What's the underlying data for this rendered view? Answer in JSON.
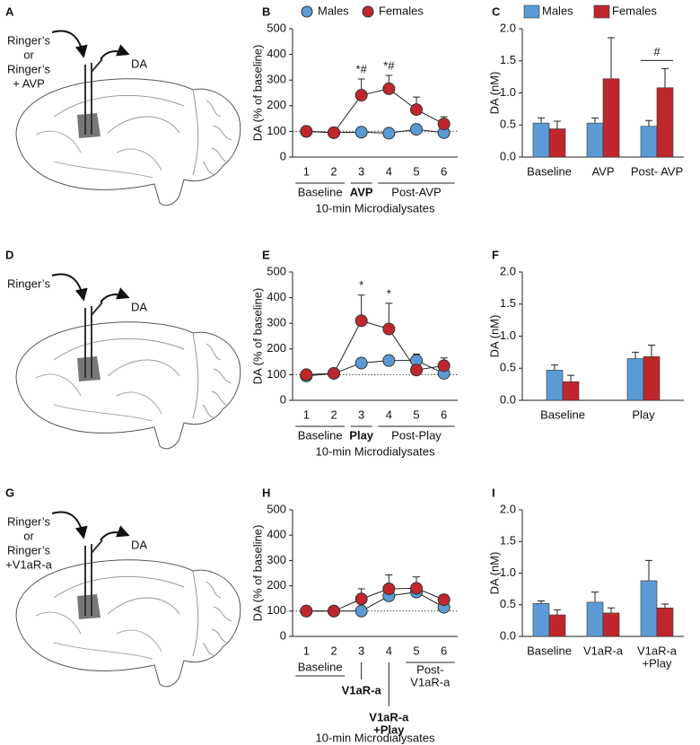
{
  "chart_data": [
    {
      "type": "line",
      "panel": "B",
      "ylabel": "DA (% of baseline)",
      "xlabel": "10-min Microdialysates",
      "categories": [
        "1",
        "2",
        "3",
        "4",
        "5",
        "6"
      ],
      "series": [
        {
          "name": "Males",
          "color": "#5b9bd5",
          "values": [
            100,
            95,
            97,
            93,
            108,
            95
          ],
          "errors": [
            8,
            8,
            8,
            8,
            10,
            8
          ]
        },
        {
          "name": "Females",
          "color": "#c0272d",
          "values": [
            100,
            95,
            241,
            266,
            185,
            129
          ],
          "errors": [
            8,
            8,
            63,
            52,
            49,
            28
          ],
          "annotations": [
            null,
            null,
            "*#",
            "*#",
            null,
            null
          ]
        }
      ],
      "x_groups": [
        {
          "label": "Baseline"
        },
        {
          "label": "AVP",
          "bold": true
        },
        {
          "label": "Post-AVP"
        }
      ],
      "reference_line": 100,
      "legend": "top",
      "ylim": [
        0,
        500
      ],
      "yticks": [
        0,
        100,
        200,
        300,
        400,
        500
      ]
    },
    {
      "type": "bar",
      "panel": "C",
      "ylabel": "DA (nM)",
      "categories": [
        "Baseline",
        "AVP",
        "Post- AVP"
      ],
      "series": [
        {
          "name": "Males",
          "color": "#5b9bd5",
          "values": [
            0.53,
            0.53,
            0.48
          ],
          "errors": [
            0.08,
            0.08,
            0.09
          ]
        },
        {
          "name": "Females",
          "color": "#c0272d",
          "values": [
            0.44,
            1.22,
            1.08
          ],
          "errors": [
            0.12,
            0.64,
            0.3
          ]
        }
      ],
      "annotations": [
        null,
        null,
        "#"
      ],
      "legend": "top",
      "ylim": [
        0,
        2
      ],
      "yticks": [
        {
          "value": 0,
          "label": "0.0"
        },
        {
          "value": 0.5,
          "label": "0.5"
        },
        {
          "value": 1,
          "label": "1.0"
        },
        {
          "value": 1.5,
          "label": "1.5"
        },
        {
          "value": 2,
          "label": "2.0"
        }
      ]
    },
    {
      "type": "line",
      "panel": "E",
      "ylabel": "DA (% of baseline)",
      "xlabel": "10-min Microdialysates",
      "categories": [
        "1",
        "2",
        "3",
        "4",
        "5",
        "6"
      ],
      "series": [
        {
          "color": "#5b9bd5",
          "values": [
            95,
            105,
            145,
            155,
            155,
            105
          ],
          "errors": [
            8,
            8,
            15,
            20,
            25,
            10
          ]
        },
        {
          "color": "#c0272d",
          "values": [
            100,
            105,
            310,
            278,
            118,
            135
          ],
          "errors": [
            10,
            8,
            100,
            100,
            15,
            30
          ],
          "annotations": [
            null,
            null,
            "*",
            "*",
            null,
            null
          ]
        }
      ],
      "x_groups": [
        {
          "label": "Baseline"
        },
        {
          "label": "Play",
          "bold": true
        },
        {
          "label": "Post-Play"
        }
      ],
      "reference_line": 100,
      "ylim": [
        0,
        500
      ],
      "yticks": [
        0,
        100,
        200,
        300,
        400,
        500
      ]
    },
    {
      "type": "bar",
      "panel": "F",
      "ylabel": "DA (nM)",
      "categories": [
        "Baseline",
        "Play"
      ],
      "series": [
        {
          "color": "#5b9bd5",
          "values": [
            0.47,
            0.65
          ],
          "errors": [
            0.08,
            0.1
          ]
        },
        {
          "color": "#c0272d",
          "values": [
            0.29,
            0.68
          ],
          "errors": [
            0.1,
            0.18
          ]
        }
      ],
      "ylim": [
        0,
        2
      ],
      "yticks": [
        {
          "value": 0,
          "label": "0.0"
        },
        {
          "value": 0.5,
          "label": "0.5"
        },
        {
          "value": 1,
          "label": "1.0"
        },
        {
          "value": 1.5,
          "label": "1.5"
        },
        {
          "value": 2,
          "label": "2.0"
        }
      ]
    },
    {
      "type": "line",
      "panel": "H",
      "ylabel": "DA (%  of baseline)",
      "xlabel": "10-min Microdialysates",
      "categories": [
        "1",
        "2",
        "3",
        "4",
        "5",
        "6"
      ],
      "series": [
        {
          "color": "#5b9bd5",
          "values": [
            100,
            100,
            100,
            160,
            175,
            115
          ],
          "errors": [
            5,
            5,
            5,
            15,
            20,
            15
          ]
        },
        {
          "color": "#c0272d",
          "values": [
            100,
            100,
            148,
            188,
            190,
            145
          ],
          "errors": [
            5,
            5,
            40,
            55,
            45,
            20
          ]
        }
      ],
      "x_groups": [
        {
          "label": "Baseline"
        },
        {
          "label": "V1aR-a",
          "bold": true
        },
        {
          "label": [
            "V1aR-a",
            "+Play"
          ],
          "bold": true
        },
        {
          "label": [
            "Post-",
            "V1aR-a"
          ]
        }
      ],
      "reference_line": 100,
      "ylim": [
        0,
        500
      ],
      "yticks": [
        0,
        100,
        200,
        300,
        400,
        500
      ]
    },
    {
      "type": "bar",
      "panel": "I",
      "ylabel": "DA (nM)",
      "categories": [
        "Baseline",
        "V1aR-a",
        [
          "V1aR-a",
          "+Play"
        ]
      ],
      "series": [
        {
          "color": "#5b9bd5",
          "values": [
            0.52,
            0.54,
            0.88
          ],
          "errors": [
            0.04,
            0.16,
            0.32
          ]
        },
        {
          "color": "#c0272d",
          "values": [
            0.34,
            0.37,
            0.45
          ],
          "errors": [
            0.08,
            0.08,
            0.06
          ]
        }
      ],
      "ylim": [
        0,
        2
      ],
      "yticks": [
        {
          "value": 0,
          "label": "0.0"
        },
        {
          "value": 0.5,
          "label": "0.5"
        },
        {
          "value": 1,
          "label": "1.0"
        },
        {
          "value": 1.5,
          "label": "1.5"
        },
        {
          "value": 2,
          "label": "2.0"
        }
      ]
    }
  ],
  "illustrations": [
    {
      "panel": "A",
      "lines": [
        "Ringer’s",
        "or",
        "Ringer’s",
        "+ AVP"
      ],
      "output": "DA"
    },
    {
      "panel": "D",
      "lines": [
        "Ringer’s"
      ],
      "output": "DA"
    },
    {
      "panel": "G",
      "lines": [
        "Ringer’s",
        "or",
        "Ringer’s",
        "+V1aR-a"
      ],
      "output": "DA"
    }
  ]
}
